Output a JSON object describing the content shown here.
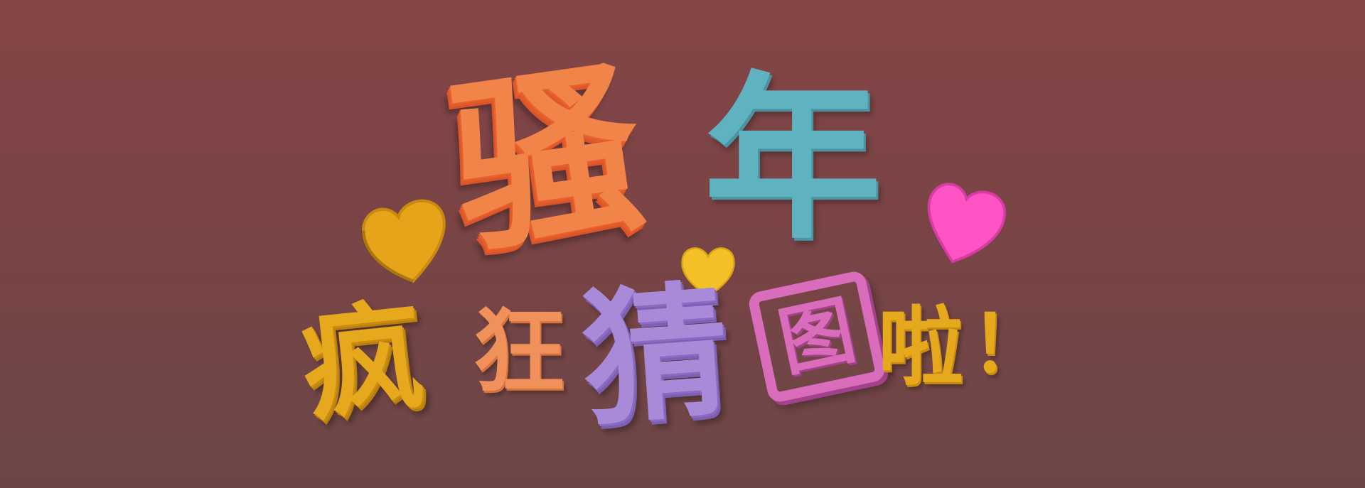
{
  "title_line1": {
    "char1": "骚",
    "char2": "年"
  },
  "title_line2": {
    "char1": "疯",
    "char2": "狂",
    "char3": "猜",
    "char4": "图",
    "char5": "啦",
    "char6": "！"
  },
  "colors": {
    "background_top": "#854546",
    "background_bottom": "#6c4646",
    "orange": "#f08449",
    "teal": "#5fb3c0",
    "mustard": "#e6a81c",
    "peach": "#f0905a",
    "lavender": "#a98ad9",
    "pink": "#d96dbb",
    "heart_pink": "#ff55c4",
    "heart_gold": "#f5c027"
  },
  "icons": [
    "heart-icon-left",
    "heart-icon-center",
    "heart-icon-right"
  ]
}
